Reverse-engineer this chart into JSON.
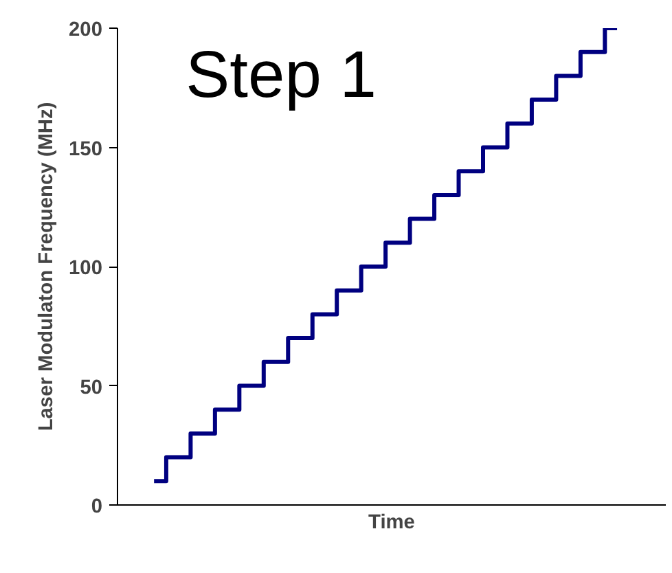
{
  "chart_data": {
    "type": "step",
    "xlabel": "Time",
    "ylabel": "Laser Modulaton Frequency (MHz)",
    "annotations": [
      "Step 1"
    ],
    "categories": [
      null,
      null,
      null,
      null,
      null,
      null,
      null,
      null,
      null,
      null,
      null,
      null,
      null,
      null,
      null,
      null,
      null,
      null,
      null,
      null
    ],
    "series": [
      {
        "color": "#000080",
        "values": [
          10,
          20,
          30,
          40,
          50,
          60,
          70,
          80,
          90,
          100,
          110,
          120,
          130,
          140,
          150,
          160,
          170,
          180,
          190,
          200
        ]
      }
    ],
    "ylim": [
      0,
      200
    ],
    "yticks": [
      0,
      50,
      100,
      150,
      200
    ],
    "grid": false
  }
}
